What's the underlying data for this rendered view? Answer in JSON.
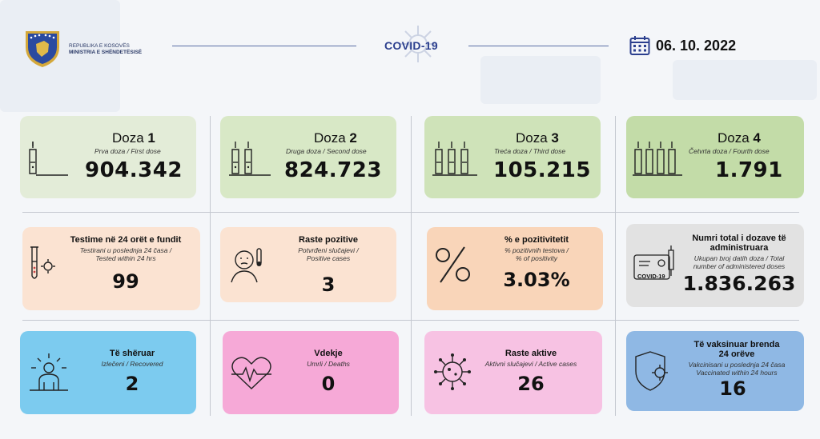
{
  "header": {
    "ministry_line1": "REPUBLIKA E KOSOVËS",
    "ministry_line2": "MINISTRIA E SHËNDETËSISË",
    "title": "COVID-19",
    "date": "06. 10. 2022"
  },
  "doses": [
    {
      "word": "Doza",
      "num": "1",
      "sub": "Prva doza / First dose",
      "value": "904.342"
    },
    {
      "word": "Doza",
      "num": "2",
      "sub": "Druga doza / Second dose",
      "value": "824.723"
    },
    {
      "word": "Doza",
      "num": "3",
      "sub": "Treća doza / Third dose",
      "value": "105.215"
    },
    {
      "word": "Doza",
      "num": "4",
      "sub": "Četvrta doza / Fourth dose",
      "value": "1.791"
    }
  ],
  "row2": [
    {
      "title": "Testime në 24 orët e fundit",
      "sub1": "Testirani u poslednja 24 časa /",
      "sub2": "Tested within 24 hrs",
      "value": "99"
    },
    {
      "title": "Raste pozitive",
      "sub1": "Potvrđeni slučajevi /",
      "sub2": "Positive cases",
      "value": "3"
    },
    {
      "title": "% e pozitivitetit",
      "sub1": "% pozitivnih testova /",
      "sub2": "% of positivity",
      "value": "3.03%"
    },
    {
      "title1": "Numri total i dozave të",
      "title2": "administruara",
      "sub1": "Ukupan broj datih doza / Total",
      "sub2": "number of administered doses",
      "value": "1.836.263",
      "icon_label": "COVID-19"
    }
  ],
  "row3": [
    {
      "title": "Të shëruar",
      "sub1": "Izlečeni / Recovered",
      "value": "2"
    },
    {
      "title": "Vdekje",
      "sub1": "Umrli / Deaths",
      "value": "0"
    },
    {
      "title": "Raste aktive",
      "sub1": "Aktivni slučajevi / Active cases",
      "value": "26"
    },
    {
      "title1": "Të vaksinuar brenda",
      "title2": "24 orëve",
      "sub1": "Vakcinisani u poslednja 24 časa",
      "sub2": "Vaccinated within 24 hours",
      "value": "16"
    }
  ],
  "colors": {
    "green_light": "#e3ecd8",
    "green_mid": "#d3e5bf",
    "green_dark": "#c2dca8",
    "peach": "#fbe3d2",
    "peach_mid": "#f9d5b9",
    "grey": "#e2e2e2",
    "blue": "#7ccbef",
    "pink": "#f6a9d7",
    "pink_light": "#f7c2e3",
    "blue_dark": "#8fb8e4"
  }
}
